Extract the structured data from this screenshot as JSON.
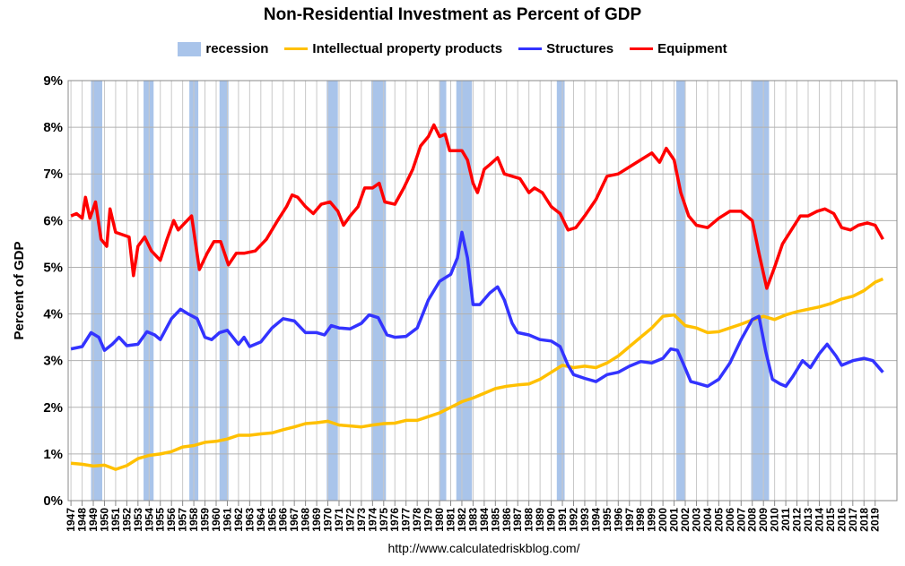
{
  "chart_data": {
    "type": "line",
    "title": "Non-Residential Investment as Percent of GDP",
    "ylabel": "Percent of GDP",
    "xlabel": "",
    "ylim": [
      0,
      9
    ],
    "xlim": [
      1947,
      2021
    ],
    "y_ticks": [
      "0%",
      "1%",
      "2%",
      "3%",
      "4%",
      "5%",
      "6%",
      "7%",
      "8%",
      "9%"
    ],
    "x_tick_years": [
      1947,
      1948,
      1949,
      1950,
      1951,
      1952,
      1953,
      1954,
      1955,
      1956,
      1957,
      1958,
      1959,
      1960,
      1961,
      1962,
      1963,
      1964,
      1965,
      1966,
      1967,
      1968,
      1969,
      1970,
      1971,
      1972,
      1973,
      1974,
      1975,
      1976,
      1977,
      1978,
      1979,
      1980,
      1981,
      1982,
      1983,
      1984,
      1985,
      1986,
      1987,
      1988,
      1989,
      1990,
      1991,
      1992,
      1993,
      1994,
      1995,
      1996,
      1997,
      1998,
      1999,
      2000,
      2001,
      2002,
      2003,
      2004,
      2005,
      2006,
      2007,
      2008,
      2009,
      2010,
      2011,
      2012,
      2013,
      2014,
      2015,
      2016,
      2017,
      2018,
      2019
    ],
    "grid": "vertical and horizontal",
    "legend_position": "top",
    "recession_label": "recession",
    "recession_color": "#a9c4ea",
    "recessions": [
      [
        1948.8,
        1949.8
      ],
      [
        1953.5,
        1954.4
      ],
      [
        1957.6,
        1958.4
      ],
      [
        1960.3,
        1961.1
      ],
      [
        1969.9,
        1970.9
      ],
      [
        1973.9,
        1975.2
      ],
      [
        1980.0,
        1980.6
      ],
      [
        1981.5,
        1982.9
      ],
      [
        1990.5,
        1991.2
      ],
      [
        2001.2,
        2002.0
      ],
      [
        2007.9,
        2009.5
      ]
    ],
    "series": [
      {
        "name": "Intellectual property products",
        "color": "#ffc000",
        "points": [
          [
            1947,
            0.8
          ],
          [
            1948,
            0.78
          ],
          [
            1949,
            0.74
          ],
          [
            1950,
            0.76
          ],
          [
            1951,
            0.67
          ],
          [
            1952,
            0.75
          ],
          [
            1953,
            0.9
          ],
          [
            1954,
            0.97
          ],
          [
            1955,
            1.0
          ],
          [
            1956,
            1.05
          ],
          [
            1957,
            1.15
          ],
          [
            1958,
            1.18
          ],
          [
            1959,
            1.25
          ],
          [
            1960,
            1.27
          ],
          [
            1961,
            1.32
          ],
          [
            1962,
            1.4
          ],
          [
            1963,
            1.4
          ],
          [
            1964,
            1.43
          ],
          [
            1965,
            1.45
          ],
          [
            1966,
            1.52
          ],
          [
            1967,
            1.58
          ],
          [
            1968,
            1.65
          ],
          [
            1969,
            1.67
          ],
          [
            1970,
            1.7
          ],
          [
            1971,
            1.62
          ],
          [
            1972,
            1.6
          ],
          [
            1973,
            1.58
          ],
          [
            1974,
            1.62
          ],
          [
            1975,
            1.65
          ],
          [
            1976,
            1.66
          ],
          [
            1977,
            1.72
          ],
          [
            1978,
            1.72
          ],
          [
            1979,
            1.8
          ],
          [
            1980,
            1.88
          ],
          [
            1981,
            2.0
          ],
          [
            1982,
            2.12
          ],
          [
            1983,
            2.2
          ],
          [
            1984,
            2.3
          ],
          [
            1985,
            2.4
          ],
          [
            1986,
            2.45
          ],
          [
            1987,
            2.48
          ],
          [
            1988,
            2.5
          ],
          [
            1989,
            2.6
          ],
          [
            1990,
            2.75
          ],
          [
            1991,
            2.9
          ],
          [
            1992,
            2.85
          ],
          [
            1993,
            2.88
          ],
          [
            1994,
            2.85
          ],
          [
            1995,
            2.95
          ],
          [
            1996,
            3.1
          ],
          [
            1997,
            3.3
          ],
          [
            1998,
            3.5
          ],
          [
            1999,
            3.7
          ],
          [
            2000,
            3.95
          ],
          [
            2001,
            3.98
          ],
          [
            2002,
            3.75
          ],
          [
            2003,
            3.7
          ],
          [
            2004,
            3.6
          ],
          [
            2005,
            3.62
          ],
          [
            2006,
            3.7
          ],
          [
            2007,
            3.78
          ],
          [
            2008,
            3.87
          ],
          [
            2009,
            3.95
          ],
          [
            2010,
            3.88
          ],
          [
            2011,
            3.98
          ],
          [
            2012,
            4.05
          ],
          [
            2013,
            4.1
          ],
          [
            2014,
            4.15
          ],
          [
            2015,
            4.22
          ],
          [
            2016,
            4.32
          ],
          [
            2017,
            4.38
          ],
          [
            2018,
            4.5
          ],
          [
            2019,
            4.68
          ],
          [
            2019.7,
            4.75
          ]
        ]
      },
      {
        "name": "Structures",
        "color": "#3333ff",
        "points": [
          [
            1947,
            3.25
          ],
          [
            1948,
            3.3
          ],
          [
            1948.8,
            3.6
          ],
          [
            1949.5,
            3.5
          ],
          [
            1950,
            3.22
          ],
          [
            1950.7,
            3.35
          ],
          [
            1951.3,
            3.5
          ],
          [
            1952,
            3.32
          ],
          [
            1953,
            3.35
          ],
          [
            1953.8,
            3.62
          ],
          [
            1954.5,
            3.55
          ],
          [
            1955,
            3.45
          ],
          [
            1956,
            3.9
          ],
          [
            1956.8,
            4.1
          ],
          [
            1957.5,
            4.0
          ],
          [
            1958.3,
            3.9
          ],
          [
            1959,
            3.5
          ],
          [
            1959.6,
            3.45
          ],
          [
            1960.3,
            3.6
          ],
          [
            1961,
            3.65
          ],
          [
            1962,
            3.35
          ],
          [
            1962.5,
            3.5
          ],
          [
            1963,
            3.3
          ],
          [
            1964,
            3.4
          ],
          [
            1965,
            3.7
          ],
          [
            1966,
            3.9
          ],
          [
            1967,
            3.85
          ],
          [
            1968,
            3.6
          ],
          [
            1969,
            3.6
          ],
          [
            1969.7,
            3.55
          ],
          [
            1970.3,
            3.75
          ],
          [
            1971,
            3.7
          ],
          [
            1972,
            3.68
          ],
          [
            1973,
            3.8
          ],
          [
            1973.7,
            3.98
          ],
          [
            1974.5,
            3.92
          ],
          [
            1975.3,
            3.55
          ],
          [
            1976,
            3.5
          ],
          [
            1977,
            3.52
          ],
          [
            1978,
            3.7
          ],
          [
            1979,
            4.3
          ],
          [
            1980,
            4.7
          ],
          [
            1981,
            4.85
          ],
          [
            1981.6,
            5.2
          ],
          [
            1982,
            5.75
          ],
          [
            1982.5,
            5.2
          ],
          [
            1983,
            4.2
          ],
          [
            1983.6,
            4.2
          ],
          [
            1984.5,
            4.45
          ],
          [
            1985.2,
            4.58
          ],
          [
            1985.8,
            4.3
          ],
          [
            1986.5,
            3.8
          ],
          [
            1987,
            3.6
          ],
          [
            1988,
            3.55
          ],
          [
            1989,
            3.45
          ],
          [
            1990,
            3.42
          ],
          [
            1990.8,
            3.3
          ],
          [
            1991.5,
            2.9
          ],
          [
            1992,
            2.7
          ],
          [
            1993,
            2.62
          ],
          [
            1994,
            2.55
          ],
          [
            1995,
            2.7
          ],
          [
            1996,
            2.75
          ],
          [
            1997,
            2.88
          ],
          [
            1998,
            2.98
          ],
          [
            1999,
            2.95
          ],
          [
            2000,
            3.05
          ],
          [
            2000.7,
            3.25
          ],
          [
            2001.3,
            3.22
          ],
          [
            2001.8,
            2.95
          ],
          [
            2002.5,
            2.55
          ],
          [
            2003,
            2.52
          ],
          [
            2004,
            2.45
          ],
          [
            2005,
            2.6
          ],
          [
            2006,
            2.95
          ],
          [
            2007,
            3.45
          ],
          [
            2008,
            3.88
          ],
          [
            2008.6,
            3.95
          ],
          [
            2009.2,
            3.2
          ],
          [
            2009.8,
            2.6
          ],
          [
            2010.5,
            2.5
          ],
          [
            2011,
            2.45
          ],
          [
            2011.6,
            2.65
          ],
          [
            2012.5,
            3.0
          ],
          [
            2013.2,
            2.85
          ],
          [
            2014,
            3.15
          ],
          [
            2014.7,
            3.35
          ],
          [
            2015.5,
            3.1
          ],
          [
            2016,
            2.9
          ],
          [
            2017,
            3.0
          ],
          [
            2018,
            3.05
          ],
          [
            2018.8,
            3.0
          ],
          [
            2019.7,
            2.75
          ]
        ]
      },
      {
        "name": "Equipment",
        "color": "#ff0000",
        "points": [
          [
            1947,
            6.1
          ],
          [
            1947.5,
            6.15
          ],
          [
            1948,
            6.05
          ],
          [
            1948.3,
            6.5
          ],
          [
            1948.7,
            6.05
          ],
          [
            1949.2,
            6.4
          ],
          [
            1949.7,
            5.6
          ],
          [
            1950.2,
            5.45
          ],
          [
            1950.5,
            6.25
          ],
          [
            1951,
            5.75
          ],
          [
            1951.6,
            5.7
          ],
          [
            1952.2,
            5.65
          ],
          [
            1952.6,
            4.82
          ],
          [
            1953,
            5.45
          ],
          [
            1953.6,
            5.65
          ],
          [
            1954.2,
            5.35
          ],
          [
            1955,
            5.15
          ],
          [
            1955.6,
            5.6
          ],
          [
            1956.2,
            6.0
          ],
          [
            1956.6,
            5.8
          ],
          [
            1957.2,
            5.95
          ],
          [
            1957.8,
            6.1
          ],
          [
            1958.5,
            4.95
          ],
          [
            1959.2,
            5.3
          ],
          [
            1959.8,
            5.55
          ],
          [
            1960.4,
            5.55
          ],
          [
            1961.1,
            5.05
          ],
          [
            1961.8,
            5.3
          ],
          [
            1962.5,
            5.3
          ],
          [
            1963.5,
            5.35
          ],
          [
            1964.5,
            5.6
          ],
          [
            1965.5,
            6.0
          ],
          [
            1966.3,
            6.3
          ],
          [
            1966.8,
            6.55
          ],
          [
            1967.3,
            6.5
          ],
          [
            1968,
            6.3
          ],
          [
            1968.7,
            6.15
          ],
          [
            1969.4,
            6.35
          ],
          [
            1970.2,
            6.4
          ],
          [
            1970.9,
            6.2
          ],
          [
            1971.4,
            5.9
          ],
          [
            1972,
            6.1
          ],
          [
            1972.7,
            6.3
          ],
          [
            1973.3,
            6.7
          ],
          [
            1974,
            6.7
          ],
          [
            1974.6,
            6.8
          ],
          [
            1975.1,
            6.4
          ],
          [
            1976,
            6.35
          ],
          [
            1976.8,
            6.7
          ],
          [
            1977.6,
            7.1
          ],
          [
            1978.3,
            7.6
          ],
          [
            1979,
            7.8
          ],
          [
            1979.5,
            8.05
          ],
          [
            1980,
            7.8
          ],
          [
            1980.5,
            7.85
          ],
          [
            1980.9,
            7.5
          ],
          [
            1981.5,
            7.5
          ],
          [
            1982,
            7.5
          ],
          [
            1982.5,
            7.3
          ],
          [
            1983,
            6.8
          ],
          [
            1983.4,
            6.6
          ],
          [
            1984,
            7.1
          ],
          [
            1984.5,
            7.2
          ],
          [
            1985.2,
            7.35
          ],
          [
            1985.8,
            7.0
          ],
          [
            1986.5,
            6.95
          ],
          [
            1987.2,
            6.9
          ],
          [
            1988,
            6.6
          ],
          [
            1988.5,
            6.7
          ],
          [
            1989.2,
            6.6
          ],
          [
            1990,
            6.3
          ],
          [
            1990.8,
            6.15
          ],
          [
            1991.5,
            5.8
          ],
          [
            1992.2,
            5.85
          ],
          [
            1993,
            6.1
          ],
          [
            1994,
            6.45
          ],
          [
            1995,
            6.95
          ],
          [
            1996,
            7.0
          ],
          [
            1997,
            7.15
          ],
          [
            1998,
            7.3
          ],
          [
            1999,
            7.45
          ],
          [
            1999.7,
            7.25
          ],
          [
            2000.3,
            7.55
          ],
          [
            2001,
            7.3
          ],
          [
            2001.6,
            6.6
          ],
          [
            2002.3,
            6.1
          ],
          [
            2003,
            5.9
          ],
          [
            2004,
            5.85
          ],
          [
            2005,
            6.05
          ],
          [
            2006,
            6.2
          ],
          [
            2007,
            6.2
          ],
          [
            2008,
            6.0
          ],
          [
            2008.6,
            5.3
          ],
          [
            2009.3,
            4.55
          ],
          [
            2010,
            5.0
          ],
          [
            2010.7,
            5.5
          ],
          [
            2011.5,
            5.8
          ],
          [
            2012.3,
            6.1
          ],
          [
            2013,
            6.1
          ],
          [
            2013.8,
            6.2
          ],
          [
            2014.5,
            6.25
          ],
          [
            2015.3,
            6.15
          ],
          [
            2016,
            5.85
          ],
          [
            2016.8,
            5.8
          ],
          [
            2017.5,
            5.9
          ],
          [
            2018.3,
            5.95
          ],
          [
            2019,
            5.9
          ],
          [
            2019.7,
            5.6
          ]
        ]
      }
    ],
    "source": "http://www.calculatedriskblog.com/"
  }
}
